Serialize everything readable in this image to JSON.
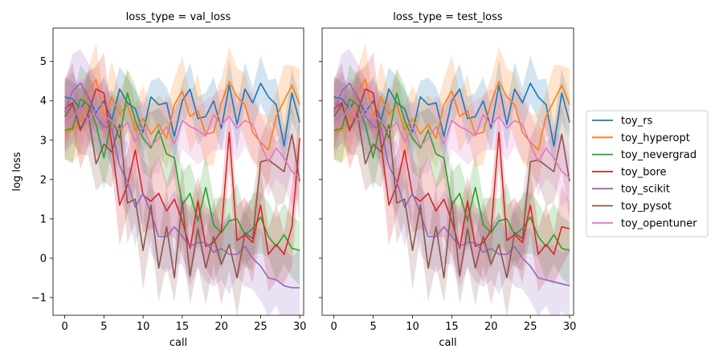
{
  "chart_data": {
    "type": "line",
    "xlabel": "call",
    "ylabel": "log loss",
    "xlim": [
      -1.5,
      30.5
    ],
    "ylim": [
      -1.45,
      5.85
    ],
    "xticks": [
      0,
      5,
      10,
      15,
      20,
      25,
      30
    ],
    "yticks": [
      -1,
      0,
      1,
      2,
      3,
      4,
      5
    ],
    "legend_position": "right",
    "panels": [
      {
        "title": "loss_type = val_loss",
        "series": [
          {
            "name": "toy_rs",
            "color": "#1f77b4",
            "band": 0.6,
            "values": [
              4.1,
              4.05,
              3.8,
              4.1,
              3.7,
              4.0,
              3.5,
              4.3,
              3.95,
              3.8,
              3.2,
              4.1,
              3.9,
              3.95,
              3.1,
              4.0,
              4.3,
              3.55,
              3.6,
              4.0,
              3.3,
              4.4,
              3.4,
              4.3,
              3.95,
              4.45,
              4.1,
              3.9,
              2.85,
              4.2,
              3.45
            ]
          },
          {
            "name": "toy_hyperopt",
            "color": "#ff7f0e",
            "band": 0.8,
            "values": [
              3.2,
              3.25,
              3.5,
              4.2,
              4.55,
              3.6,
              4.1,
              3.65,
              3.9,
              3.25,
              3.55,
              3.15,
              3.4,
              3.05,
              3.9,
              4.25,
              3.6,
              3.75,
              3.15,
              3.2,
              3.95,
              4.5,
              4.1,
              3.9,
              3.2,
              2.95,
              2.75,
              3.6,
              4.0,
              4.4,
              3.9
            ]
          },
          {
            "name": "toy_nevergrad",
            "color": "#2ca02c",
            "band": 0.8,
            "values": [
              3.25,
              3.3,
              4.05,
              3.9,
              3.4,
              2.55,
              3.55,
              3.05,
              4.2,
              3.5,
              3.05,
              2.8,
              3.25,
              2.65,
              2.55,
              1.35,
              1.65,
              0.95,
              1.8,
              0.85,
              0.65,
              0.95,
              1.0,
              0.6,
              0.75,
              1.05,
              0.55,
              0.3,
              0.6,
              0.25,
              0.2
            ]
          },
          {
            "name": "toy_bore",
            "color": "#d62728",
            "band": 0.9,
            "values": [
              3.8,
              3.95,
              3.25,
              3.7,
              4.3,
              4.2,
              2.9,
              1.35,
              1.85,
              2.75,
              1.6,
              1.45,
              1.65,
              1.2,
              1.5,
              0.95,
              0.25,
              1.45,
              0.3,
              0.4,
              0.7,
              3.2,
              0.45,
              0.6,
              0.4,
              1.35,
              0.1,
              0.35,
              0.1,
              0.8,
              3.05
            ]
          },
          {
            "name": "toy_scikit",
            "color": "#9467bd",
            "band": 0.9,
            "values": [
              3.7,
              4.25,
              4.45,
              4.1,
              3.6,
              3.35,
              3.3,
              2.35,
              1.95,
              1.3,
              1.65,
              1.15,
              0.55,
              0.55,
              0.8,
              0.55,
              0.3,
              0.4,
              0.4,
              0.15,
              0.25,
              0.1,
              0.1,
              0.3,
              0.0,
              -0.2,
              -0.5,
              -0.55,
              -0.7,
              -0.75,
              -0.75
            ]
          },
          {
            "name": "toy_pysot",
            "color": "#8c564b",
            "band": 0.9,
            "values": [
              3.6,
              3.9,
              3.3,
              3.65,
              2.4,
              2.9,
              2.7,
              3.4,
              1.4,
              1.5,
              0.2,
              1.35,
              -0.25,
              0.8,
              -0.5,
              1.45,
              -0.45,
              0.75,
              -0.25,
              0.55,
              -0.15,
              0.35,
              -0.5,
              0.65,
              0.5,
              2.45,
              2.5,
              2.35,
              2.2,
              3.15,
              1.95
            ]
          },
          {
            "name": "toy_opentuner",
            "color": "#e377c2",
            "band": 0.8,
            "values": [
              3.4,
              3.55,
              3.85,
              3.5,
              3.8,
              3.6,
              3.5,
              3.25,
              3.45,
              2.95,
              3.35,
              2.85,
              3.05,
              3.35,
              2.9,
              3.5,
              3.35,
              3.25,
              3.1,
              3.65,
              3.4,
              3.6,
              3.3,
              3.5,
              3.4,
              2.9,
              2.45,
              2.8,
              2.55,
              2.2,
              2.05
            ]
          }
        ]
      },
      {
        "title": "loss_type = test_loss",
        "series": [
          {
            "name": "toy_rs",
            "color": "#1f77b4",
            "band": 0.6,
            "values": [
              4.1,
              4.05,
              3.8,
              4.1,
              3.7,
              4.0,
              3.5,
              4.3,
              3.95,
              3.8,
              3.2,
              4.1,
              3.9,
              3.95,
              3.1,
              4.0,
              4.3,
              3.55,
              3.6,
              4.0,
              3.3,
              4.4,
              3.4,
              4.3,
              3.95,
              4.45,
              4.1,
              3.9,
              2.85,
              4.2,
              3.45
            ]
          },
          {
            "name": "toy_hyperopt",
            "color": "#ff7f0e",
            "band": 0.8,
            "values": [
              3.2,
              3.25,
              3.5,
              4.2,
              4.55,
              3.6,
              4.1,
              3.65,
              3.9,
              3.25,
              3.55,
              3.15,
              3.4,
              3.05,
              3.9,
              4.25,
              3.6,
              3.75,
              3.15,
              3.2,
              3.95,
              4.5,
              4.1,
              3.9,
              3.2,
              2.95,
              2.75,
              3.6,
              4.0,
              4.4,
              3.9
            ]
          },
          {
            "name": "toy_nevergrad",
            "color": "#2ca02c",
            "band": 0.8,
            "values": [
              3.25,
              3.3,
              4.05,
              3.9,
              3.4,
              2.55,
              3.55,
              3.05,
              4.2,
              3.5,
              3.05,
              2.8,
              3.25,
              2.65,
              2.55,
              1.35,
              1.65,
              0.95,
              1.8,
              0.85,
              0.65,
              0.95,
              1.0,
              0.6,
              0.75,
              1.05,
              0.55,
              0.3,
              0.6,
              0.25,
              0.2
            ]
          },
          {
            "name": "toy_bore",
            "color": "#d62728",
            "band": 0.9,
            "values": [
              3.8,
              3.95,
              3.25,
              3.7,
              4.3,
              4.2,
              2.9,
              1.35,
              1.85,
              2.75,
              1.6,
              1.45,
              1.65,
              1.2,
              1.5,
              0.95,
              0.25,
              1.45,
              0.3,
              0.4,
              0.7,
              3.2,
              0.45,
              0.6,
              0.4,
              1.35,
              0.1,
              0.35,
              0.1,
              0.8,
              0.75
            ]
          },
          {
            "name": "toy_scikit",
            "color": "#9467bd",
            "band": 0.9,
            "values": [
              3.7,
              4.25,
              4.45,
              4.1,
              3.6,
              3.35,
              3.3,
              2.35,
              1.95,
              1.3,
              1.65,
              1.15,
              0.55,
              0.55,
              0.8,
              0.55,
              0.3,
              0.4,
              0.4,
              0.15,
              0.25,
              0.1,
              0.1,
              0.3,
              0.0,
              -0.2,
              -0.5,
              -0.55,
              -0.6,
              -0.65,
              -0.7
            ]
          },
          {
            "name": "toy_pysot",
            "color": "#8c564b",
            "band": 0.9,
            "values": [
              3.6,
              3.9,
              3.3,
              3.65,
              2.4,
              2.9,
              2.7,
              3.4,
              1.4,
              1.5,
              0.2,
              1.35,
              -0.25,
              0.8,
              -0.5,
              1.45,
              -0.45,
              0.75,
              -0.25,
              0.55,
              -0.15,
              0.35,
              -0.5,
              0.65,
              0.5,
              2.45,
              2.5,
              2.35,
              2.2,
              3.15,
              1.95
            ]
          },
          {
            "name": "toy_opentuner",
            "color": "#e377c2",
            "band": 0.8,
            "values": [
              3.4,
              3.55,
              3.85,
              3.5,
              3.8,
              3.6,
              3.5,
              3.25,
              3.45,
              2.95,
              3.35,
              2.85,
              3.05,
              3.35,
              2.9,
              3.5,
              3.35,
              3.25,
              3.1,
              3.65,
              3.4,
              3.6,
              3.3,
              3.5,
              3.4,
              2.9,
              2.45,
              2.8,
              2.55,
              2.2,
              2.05
            ]
          }
        ]
      }
    ]
  }
}
